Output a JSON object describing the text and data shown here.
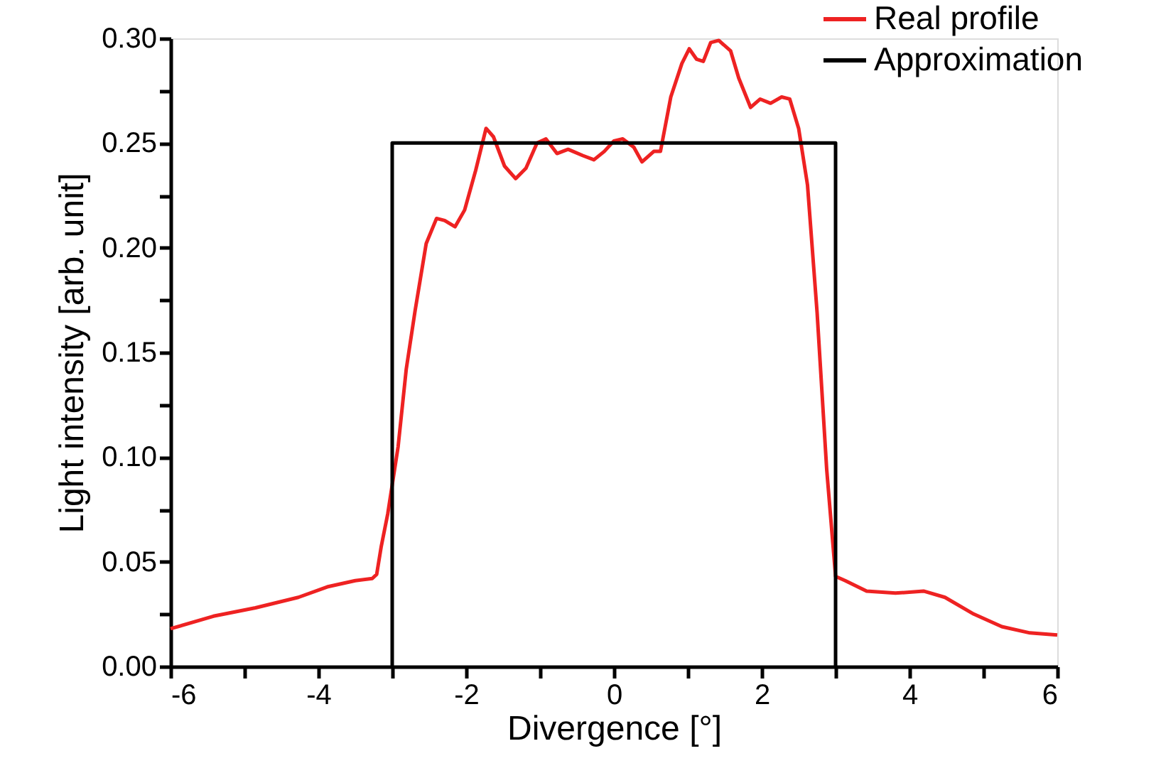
{
  "chart_data": {
    "type": "line",
    "xlabel": "Divergence [°]",
    "ylabel": "Light intensity [arb. unit]",
    "xlim": [
      -6,
      6
    ],
    "ylim": [
      0,
      0.3
    ],
    "xticks": [
      -6,
      {
        "value": -5,
        "label": null
      },
      -4,
      {
        "value": -3,
        "label": null
      },
      -2,
      {
        "value": -1,
        "label": null
      },
      0,
      {
        "value": 1,
        "label": null
      },
      2,
      {
        "value": 3,
        "label": null
      },
      4,
      {
        "value": 5,
        "label": null
      },
      6
    ],
    "yticks": [
      {
        "value": 0,
        "label": "0.00"
      },
      {
        "value": 0.025,
        "label": null
      },
      {
        "value": 0.05,
        "label": "0.05"
      },
      {
        "value": 0.075,
        "label": null
      },
      {
        "value": 0.1,
        "label": "0.10"
      },
      {
        "value": 0.125,
        "label": null
      },
      {
        "value": 0.15,
        "label": "0.15"
      },
      {
        "value": 0.175,
        "label": null
      },
      {
        "value": 0.2,
        "label": "0.20"
      },
      {
        "value": 0.225,
        "label": null
      },
      {
        "value": 0.25,
        "label": "0.25"
      },
      {
        "value": 0.275,
        "label": null
      },
      {
        "value": 0.3,
        "label": "0.30"
      }
    ],
    "grid": false,
    "legend": "top right",
    "line_style": "solid",
    "marker": "none",
    "series": [
      {
        "name": "Real profile",
        "color": "#ee2222",
        "x": [
          -6,
          -5.42,
          -4.85,
          -4.27,
          -3.88,
          -3.5,
          -3.27,
          -3.21,
          -3.15,
          -3.06,
          -2.92,
          -2.81,
          -2.69,
          -2.54,
          -2.4,
          -2.29,
          -2.15,
          -2.02,
          -1.87,
          -1.73,
          -1.63,
          -1.48,
          -1.33,
          -1.19,
          -1.04,
          -0.92,
          -0.77,
          -0.62,
          -0.42,
          -0.27,
          -0.13,
          0.0,
          0.12,
          0.27,
          0.38,
          0.54,
          0.63,
          0.77,
          0.92,
          1.02,
          1.12,
          1.21,
          1.31,
          1.42,
          1.58,
          1.69,
          1.85,
          1.98,
          2.12,
          2.27,
          2.38,
          2.5,
          2.62,
          2.75,
          2.88,
          3.0,
          3.13,
          3.42,
          3.81,
          4.19,
          4.48,
          4.87,
          5.25,
          5.63,
          6.0
        ],
        "values": [
          0.018,
          0.024,
          0.028,
          0.033,
          0.038,
          0.041,
          0.042,
          0.044,
          0.057,
          0.073,
          0.105,
          0.142,
          0.17,
          0.202,
          0.214,
          0.213,
          0.21,
          0.218,
          0.237,
          0.257,
          0.253,
          0.239,
          0.233,
          0.238,
          0.25,
          0.252,
          0.245,
          0.247,
          0.244,
          0.242,
          0.246,
          0.251,
          0.252,
          0.248,
          0.241,
          0.246,
          0.246,
          0.272,
          0.288,
          0.295,
          0.29,
          0.289,
          0.298,
          0.299,
          0.294,
          0.281,
          0.267,
          0.271,
          0.269,
          0.272,
          0.271,
          0.257,
          0.23,
          0.169,
          0.094,
          0.043,
          0.041,
          0.036,
          0.035,
          0.036,
          0.033,
          0.025,
          0.019,
          0.016,
          0.015
        ]
      },
      {
        "name": "Approximation",
        "color": "#000000",
        "x": [
          -3,
          -3,
          3,
          3
        ],
        "values": [
          0,
          0.25,
          0.25,
          0
        ]
      }
    ]
  }
}
